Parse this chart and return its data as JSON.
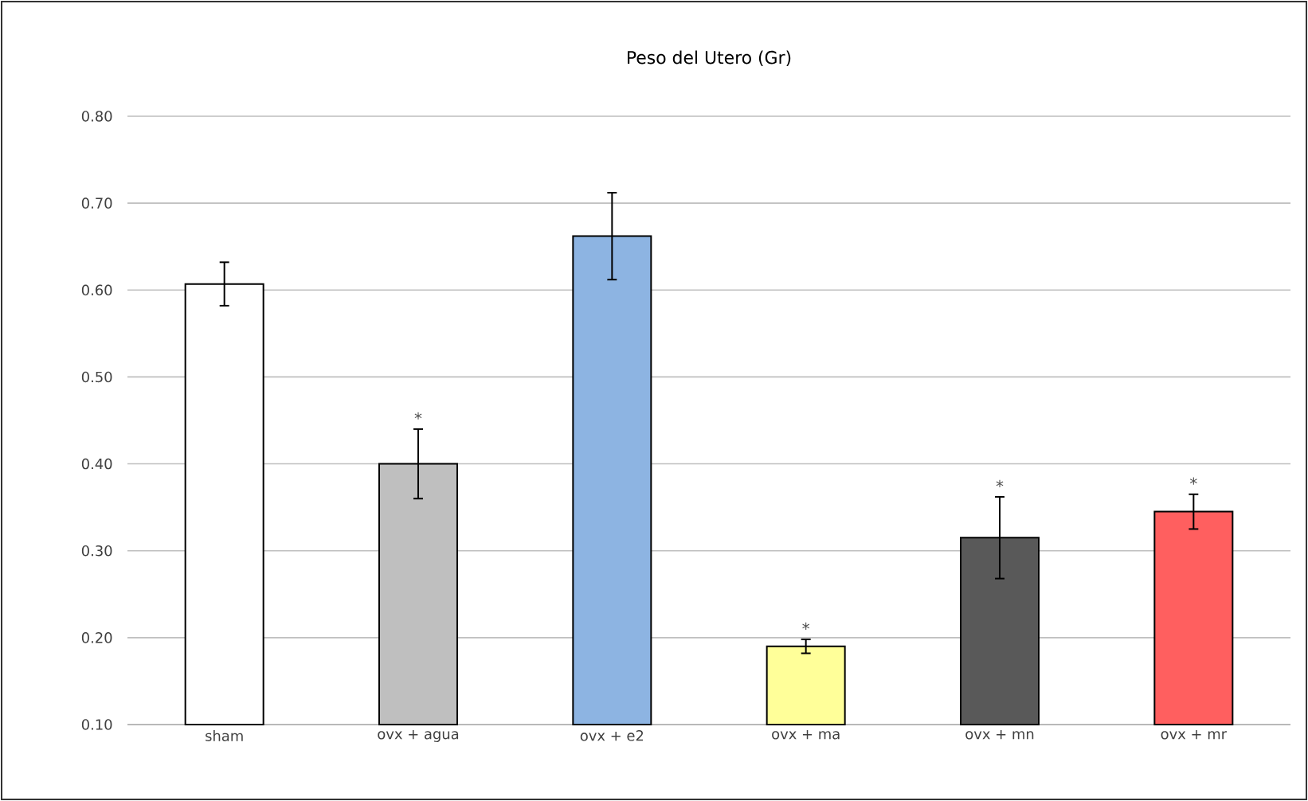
{
  "chart_data": {
    "type": "bar",
    "title": "Peso del Utero (Gr)",
    "categories": [
      "sham",
      "ovx + agua",
      "ovx + e2",
      "ovx + ma",
      "ovx + mn",
      "ovx + mr"
    ],
    "values": [
      0.607,
      0.4,
      0.662,
      0.19,
      0.315,
      0.345
    ],
    "errors": [
      0.025,
      0.04,
      0.05,
      0.008,
      0.047,
      0.02
    ],
    "colors": [
      "#ffffff",
      "#bfbfbf",
      "#8db4e2",
      "#ffff99",
      "#595959",
      "#ff5f5f"
    ],
    "ylim": [
      0.1,
      0.8
    ],
    "yticks": [
      {
        "value": 0.1,
        "label": "0.10"
      },
      {
        "value": 0.2,
        "label": "0.20"
      },
      {
        "value": 0.3,
        "label": "0.30"
      },
      {
        "value": 0.4,
        "label": "0.40"
      },
      {
        "value": 0.5,
        "label": "0.50"
      },
      {
        "value": 0.6,
        "label": "0.60"
      },
      {
        "value": 0.7,
        "label": "0.70"
      },
      {
        "value": 0.8,
        "label": "0.80"
      }
    ],
    "grid": "y",
    "annotations": [
      {
        "text": "*",
        "x": "ovx + agua",
        "y": 0.44
      },
      {
        "text": "*",
        "x": "ovx + ma",
        "y": 0.198
      },
      {
        "text": "*",
        "x": "ovx + mn",
        "y": 0.362
      },
      {
        "text": "*",
        "x": "ovx + mr",
        "y": 0.365
      }
    ]
  }
}
